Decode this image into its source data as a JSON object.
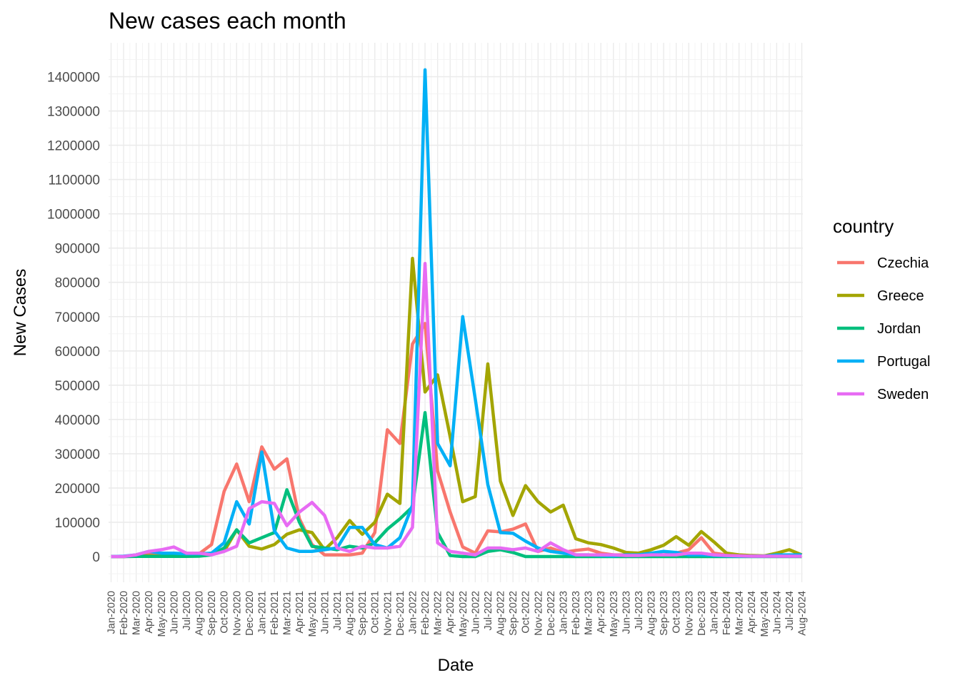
{
  "chart_data": {
    "type": "line",
    "title": "New cases each month",
    "xlabel": "Date",
    "ylabel": "New Cases",
    "ylim": [
      -75000,
      1500000
    ],
    "y_ticks": [
      0,
      100000,
      200000,
      300000,
      400000,
      500000,
      600000,
      700000,
      800000,
      900000,
      1000000,
      1100000,
      1200000,
      1300000,
      1400000
    ],
    "grid": true,
    "legend_title": "country",
    "legend_position": "right",
    "x": [
      "Jan-2020",
      "Feb-2020",
      "Mar-2020",
      "Apr-2020",
      "May-2020",
      "Jun-2020",
      "Jul-2020",
      "Aug-2020",
      "Sep-2020",
      "Oct-2020",
      "Nov-2020",
      "Dec-2020",
      "Jan-2021",
      "Feb-2021",
      "Mar-2021",
      "Apr-2021",
      "May-2021",
      "Jun-2021",
      "Jul-2021",
      "Aug-2021",
      "Sep-2021",
      "Oct-2021",
      "Nov-2021",
      "Dec-2021",
      "Jan-2022",
      "Feb-2022",
      "Mar-2022",
      "Apr-2022",
      "May-2022",
      "Jun-2022",
      "Jul-2022",
      "Aug-2022",
      "Sep-2022",
      "Oct-2022",
      "Nov-2022",
      "Dec-2022",
      "Jan-2023",
      "Feb-2023",
      "Mar-2023",
      "Apr-2023",
      "May-2023",
      "Jun-2023",
      "Jul-2023",
      "Aug-2023",
      "Sep-2023",
      "Oct-2023",
      "Nov-2023",
      "Dec-2023",
      "Jan-2024",
      "Feb-2024",
      "Mar-2024",
      "Apr-2024",
      "May-2024",
      "Jun-2024",
      "Jul-2024",
      "Aug-2024"
    ],
    "series": [
      {
        "name": "Czechia",
        "color": "#F8766D",
        "values": [
          0,
          0,
          3000,
          8000,
          5000,
          5000,
          6000,
          8000,
          35000,
          190000,
          270000,
          160000,
          320000,
          255000,
          285000,
          110000,
          35000,
          5000,
          5000,
          5000,
          10000,
          70000,
          370000,
          330000,
          620000,
          680000,
          250000,
          130000,
          28000,
          10000,
          75000,
          72000,
          80000,
          95000,
          15000,
          25000,
          12000,
          18000,
          22000,
          10000,
          5000,
          5000,
          5000,
          5000,
          5000,
          10000,
          20000,
          55000,
          10000,
          5000,
          3000,
          2000,
          1000,
          1000,
          1000,
          1000
        ]
      },
      {
        "name": "Greece",
        "color": "#A3A500",
        "values": [
          0,
          0,
          2000,
          2000,
          1000,
          1000,
          2000,
          5000,
          10000,
          15000,
          78000,
          30000,
          22000,
          35000,
          65000,
          78000,
          70000,
          20000,
          55000,
          105000,
          65000,
          100000,
          182000,
          155000,
          870000,
          480000,
          530000,
          350000,
          160000,
          175000,
          562000,
          220000,
          120000,
          207000,
          160000,
          130000,
          150000,
          52000,
          40000,
          35000,
          25000,
          12000,
          10000,
          20000,
          33000,
          58000,
          33000,
          73000,
          43000,
          10000,
          5000,
          3000,
          2000,
          10000,
          20000,
          5000
        ]
      },
      {
        "name": "Jordan",
        "color": "#00BF7D",
        "values": [
          0,
          0,
          500,
          500,
          500,
          500,
          500,
          1000,
          5000,
          25000,
          78000,
          40000,
          55000,
          70000,
          195000,
          100000,
          30000,
          25000,
          20000,
          30000,
          25000,
          40000,
          80000,
          110000,
          145000,
          420000,
          70000,
          3000,
          0,
          0,
          15000,
          20000,
          12000,
          0,
          0,
          0,
          0,
          0,
          0,
          0,
          0,
          0,
          0,
          0,
          0,
          0,
          0,
          0,
          0,
          0,
          0,
          0,
          0,
          0,
          0,
          0
        ]
      },
      {
        "name": "Portugal",
        "color": "#00B0F6",
        "values": [
          0,
          1000,
          5000,
          15000,
          10000,
          10000,
          8000,
          8000,
          10000,
          40000,
          160000,
          95000,
          305000,
          75000,
          25000,
          15000,
          15000,
          20000,
          25000,
          85000,
          85000,
          35000,
          25000,
          55000,
          150000,
          1420000,
          330000,
          265000,
          700000,
          460000,
          210000,
          70000,
          68000,
          45000,
          25000,
          15000,
          10000,
          5000,
          5000,
          3000,
          2000,
          5000,
          5000,
          10000,
          15000,
          12000,
          5000,
          5000,
          3000,
          2000,
          1000,
          1000,
          1000,
          5000,
          5000,
          5000
        ]
      },
      {
        "name": "Sweden",
        "color": "#E76BF3",
        "values": [
          0,
          0,
          5000,
          15000,
          20000,
          28000,
          10000,
          10000,
          5000,
          15000,
          30000,
          140000,
          160000,
          155000,
          90000,
          130000,
          158000,
          120000,
          25000,
          15000,
          30000,
          25000,
          25000,
          30000,
          85000,
          855000,
          40000,
          15000,
          10000,
          5000,
          25000,
          25000,
          20000,
          25000,
          15000,
          40000,
          20000,
          5000,
          5000,
          5000,
          5000,
          3000,
          3000,
          5000,
          5000,
          5000,
          10000,
          10000,
          5000,
          3000,
          2000,
          1000,
          1000,
          1000,
          1000,
          1000
        ]
      }
    ]
  }
}
